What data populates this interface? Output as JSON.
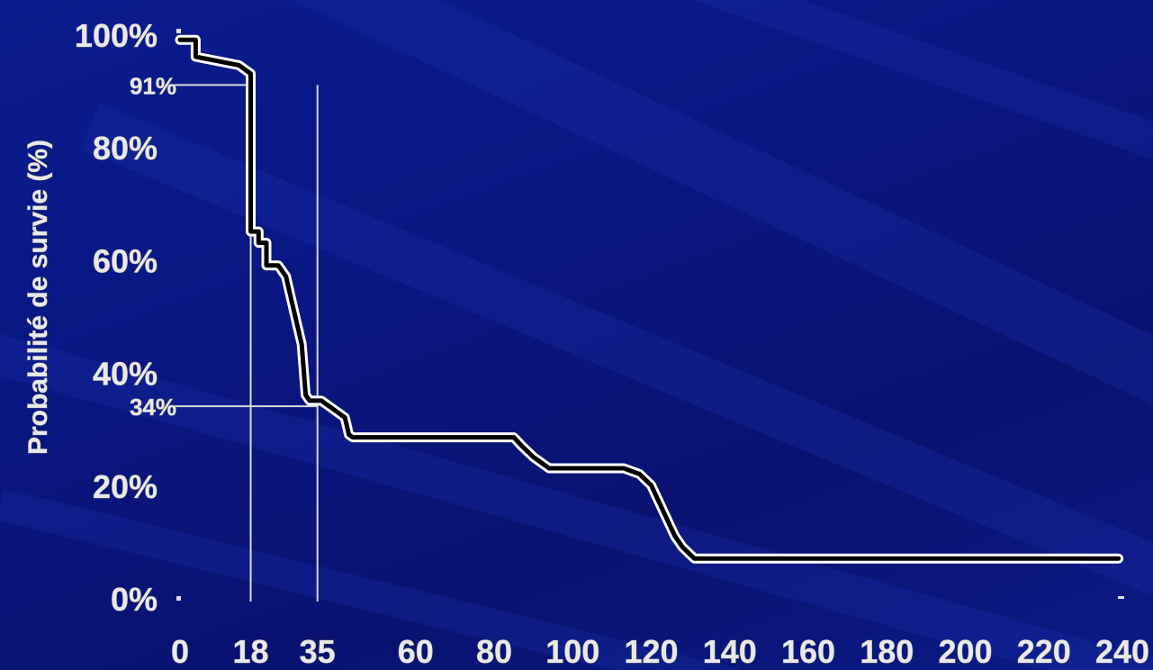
{
  "chart_data": {
    "type": "line",
    "title": "",
    "xlabel": "",
    "ylabel": "Probabilité de survie (%)",
    "xlim": [
      0,
      240
    ],
    "ylim": [
      0,
      100
    ],
    "x_ticks": [
      "0",
      "18",
      "35",
      "60",
      "80",
      "100",
      "120",
      "140",
      "160",
      "180",
      "200",
      "220",
      "240"
    ],
    "x_tick_values": [
      0,
      18,
      35,
      60,
      80,
      100,
      120,
      140,
      160,
      180,
      200,
      220,
      240
    ],
    "y_ticks": [
      "0%",
      "20%",
      "40%",
      "60%",
      "80%",
      "100%"
    ],
    "y_tick_values": [
      0,
      20,
      40,
      60,
      80,
      100
    ],
    "grid": false,
    "series": [
      {
        "name": "",
        "color": "#000000",
        "x": [
          0,
          4,
          4,
          15,
          18,
          18,
          20,
          20,
          22,
          22,
          25,
          27,
          28,
          31,
          32,
          33,
          36,
          38,
          40,
          42,
          43,
          44,
          85,
          87,
          90,
          92,
          94,
          113,
          117,
          120,
          122,
          124,
          126,
          128,
          131,
          239
        ],
        "y": [
          99,
          99,
          96,
          94.5,
          93,
          65,
          65,
          63,
          63,
          59,
          59,
          57,
          54,
          45,
          36,
          35,
          35,
          34,
          33,
          32,
          29,
          28.5,
          28.5,
          27,
          25,
          24,
          23,
          23,
          22,
          20,
          17,
          14,
          11,
          9,
          7,
          7
        ]
      }
    ],
    "reference_lines": [
      {
        "label": "91%",
        "y": 91,
        "x_to": 18
      },
      {
        "label": "34%",
        "y": 34,
        "x_to": 35
      }
    ],
    "vertical_markers": [
      18,
      35
    ]
  }
}
